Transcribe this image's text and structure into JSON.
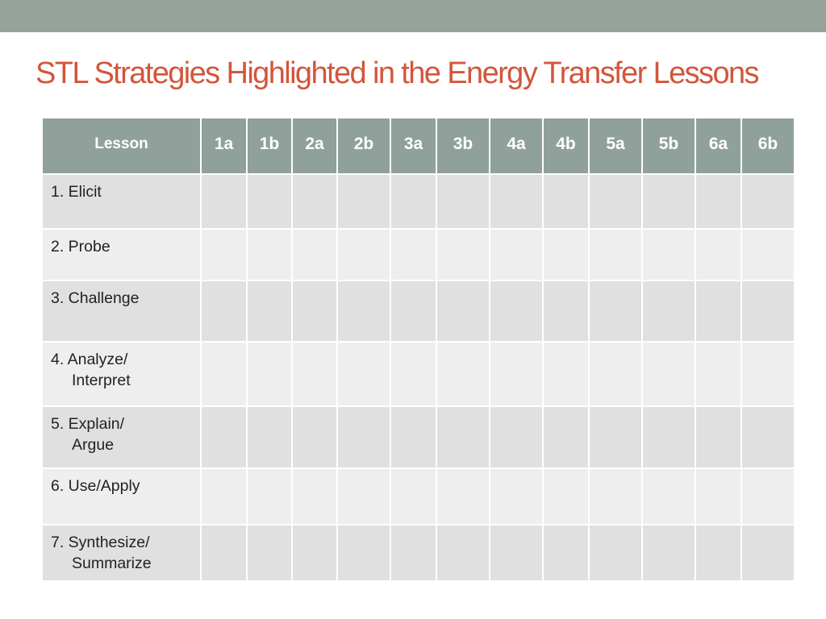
{
  "slide": {
    "title": "STL Strategies Highlighted in the Energy Transfer Lessons"
  },
  "table": {
    "header_label": "Lesson",
    "lessons": [
      "1a",
      "1b",
      "2a",
      "2b",
      "3a",
      "3b",
      "4a",
      "4b",
      "5a",
      "5b",
      "6a",
      "6b"
    ],
    "strategies": [
      "1. Elicit",
      "2. Probe",
      "3. Challenge",
      "4. Analyze/ Interpret",
      "5. Explain/ Argue",
      "6. Use/Apply",
      "7. Synthesize/ Summarize"
    ]
  },
  "colors": {
    "top_bar": "#95a39b",
    "title_text": "#d4553a",
    "header_fill": "#8fa19a",
    "row_dark": "#dfe0df",
    "row_light": "#edeeed"
  }
}
